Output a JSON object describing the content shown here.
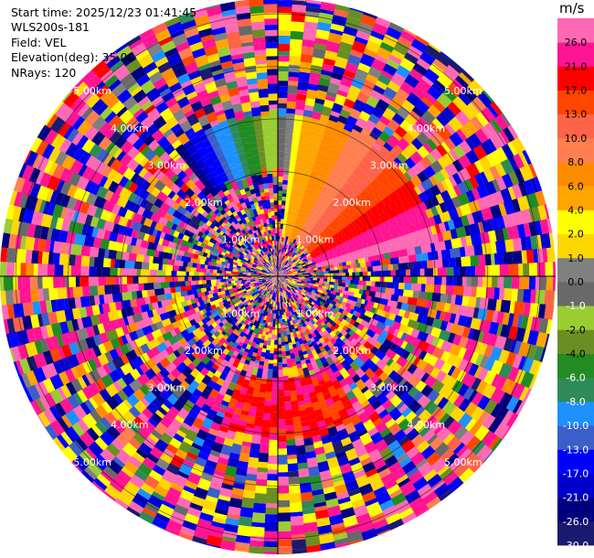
{
  "info": {
    "start_time": "Start time: 2025/12/23 01:41:45",
    "site": "WLS200s-181",
    "field": "Field: VEL",
    "elevation": "Elevation(deg): 35.00",
    "nrays": "NRays: 120"
  },
  "chart_data": {
    "type": "heatmap",
    "subtype": "ppi-polar",
    "field": "VEL",
    "unit": "m/s",
    "elevation_deg": 35.0,
    "nrays": 120,
    "range_rings_km": [
      1,
      2,
      3,
      4,
      5
    ],
    "range_max_km": 5.3,
    "ring_labels": [
      "1.00km",
      "2.00km",
      "3.00km",
      "4.00km",
      "5.00km"
    ],
    "colorbar": {
      "label": "m/s",
      "ticks": [
        "-30.0",
        "-26.0",
        "-21.0",
        "-17.0",
        "-13.0",
        "-10.0",
        "-8.0",
        "-6.0",
        "-4.0",
        "-2.0",
        "-1.0",
        "0.0",
        "1.0",
        "2.0",
        "4.0",
        "6.0",
        "8.0",
        "10.0",
        "13.0",
        "17.0",
        "21.0",
        "26.0"
      ],
      "colors": [
        "#1a1a6e",
        "#000080",
        "#0000cd",
        "#0000ff",
        "#3b5fc8",
        "#1e90ff",
        "#2e8b57",
        "#228b22",
        "#6b8e23",
        "#9acd32",
        "#696969",
        "#808080",
        "#ffd700",
        "#ffff00",
        "#ffa500",
        "#ff8c00",
        "#ff7f50",
        "#ff6347",
        "#ff4500",
        "#ff0000",
        "#ff1493",
        "#ff69b4"
      ]
    }
  }
}
